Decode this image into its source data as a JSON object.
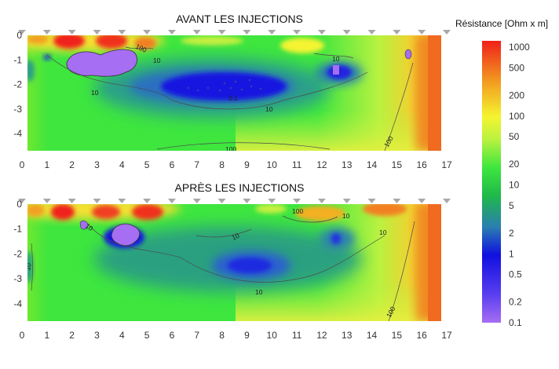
{
  "chart_data": [
    {
      "type": "heatmap",
      "title": "AVANT LES INJECTIONS",
      "xlim": [
        0,
        17
      ],
      "ylim": [
        -4.7,
        0
      ],
      "xticks": [
        "0",
        "1",
        "2",
        "3",
        "4",
        "5",
        "6",
        "7",
        "8",
        "9",
        "10",
        "11",
        "12",
        "13",
        "14",
        "15",
        "16",
        "17"
      ],
      "yticks": [
        "0",
        "-1",
        "-2",
        "-3",
        "-4"
      ],
      "contour_labels": [
        "100",
        "10",
        "10",
        "10",
        "0.1",
        "10",
        "100",
        "100"
      ]
    },
    {
      "type": "heatmap",
      "title": "APRÈS LES INJECTIONS",
      "xlim": [
        0,
        17
      ],
      "ylim": [
        -4.7,
        0
      ],
      "xticks": [
        "0",
        "1",
        "2",
        "3",
        "4",
        "5",
        "6",
        "7",
        "8",
        "9",
        "10",
        "11",
        "12",
        "13",
        "14",
        "15",
        "16",
        "17"
      ],
      "yticks": [
        "0",
        "-1",
        "-2",
        "-3",
        "-4"
      ],
      "contour_labels": [
        "10",
        "10",
        "10",
        "10",
        "100",
        "10",
        "10",
        "100"
      ]
    }
  ],
  "colorbar": {
    "title": "Résistance [Ohm x m]",
    "scale": "log",
    "ticks": [
      "1000",
      "500",
      "200",
      "100",
      "50",
      "20",
      "10",
      "5",
      "2",
      "1",
      "0.5",
      "0.2",
      "0.1"
    ],
    "colors": [
      "#a66ef2",
      "#1010e0",
      "#2a7fb0",
      "#1fb84a",
      "#3ee63e",
      "#b9f240",
      "#f4f430",
      "#f2a020",
      "#f0201a"
    ]
  }
}
